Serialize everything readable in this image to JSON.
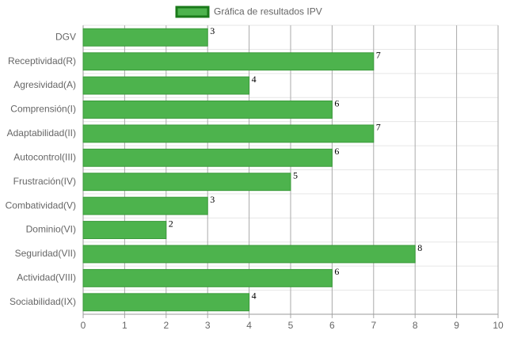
{
  "chart_data": {
    "type": "bar",
    "orientation": "horizontal",
    "categories": [
      "DGV",
      "Receptividad(R)",
      "Agresividad(A)",
      "Comprensión(I)",
      "Adaptabilidad(II)",
      "Autocontrol(III)",
      "Frustración(IV)",
      "Combatividad(V)",
      "Dominio(VI)",
      "Seguridad(VII)",
      "Actividad(VIII)",
      "Sociabilidad(IX)"
    ],
    "series": [
      {
        "name": "Gráfica de resultados IPV",
        "color": "#4db34d",
        "values": [
          3,
          7,
          4,
          6,
          7,
          6,
          5,
          3,
          2,
          8,
          6,
          4
        ]
      }
    ],
    "xlim": [
      0,
      10
    ],
    "xticks": [
      0,
      1,
      2,
      3,
      4,
      5,
      6,
      7,
      8,
      9,
      10
    ],
    "grid": true,
    "legend": "top"
  }
}
